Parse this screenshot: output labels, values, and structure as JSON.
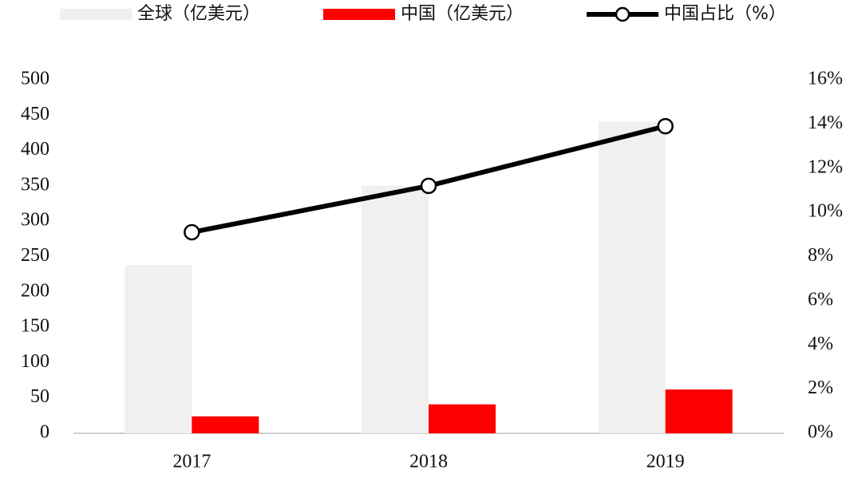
{
  "chart_data": {
    "type": "combo",
    "categories": [
      "2017",
      "2018",
      "2019"
    ],
    "series": [
      {
        "name": "全球（亿美元）",
        "type": "bar",
        "color": "#f0f0f0",
        "axis": "y",
        "values": [
          238,
          350,
          441
        ]
      },
      {
        "name": "中国（亿美元）",
        "type": "bar",
        "color": "#ff0000",
        "axis": "y",
        "values": [
          24,
          41,
          62
        ]
      },
      {
        "name": "中国占比（%）",
        "type": "line",
        "color": "#000000",
        "axis": "y2",
        "values": [
          9.1,
          11.2,
          13.9
        ]
      }
    ],
    "ylim": [
      0,
      500
    ],
    "yticks": [
      0,
      50,
      100,
      150,
      200,
      250,
      300,
      350,
      400,
      450,
      500
    ],
    "y2lim": [
      0,
      16
    ],
    "y2ticks": [
      {
        "value": 0,
        "label": "0%"
      },
      {
        "value": 2,
        "label": "2%"
      },
      {
        "value": 4,
        "label": "4%"
      },
      {
        "value": 6,
        "label": "6%"
      },
      {
        "value": 8,
        "label": "8%"
      },
      {
        "value": 10,
        "label": "10%"
      },
      {
        "value": 12,
        "label": "12%"
      },
      {
        "value": 14,
        "label": "14%"
      },
      {
        "value": 16,
        "label": "16%"
      }
    ],
    "grid": false,
    "legend": "top"
  }
}
